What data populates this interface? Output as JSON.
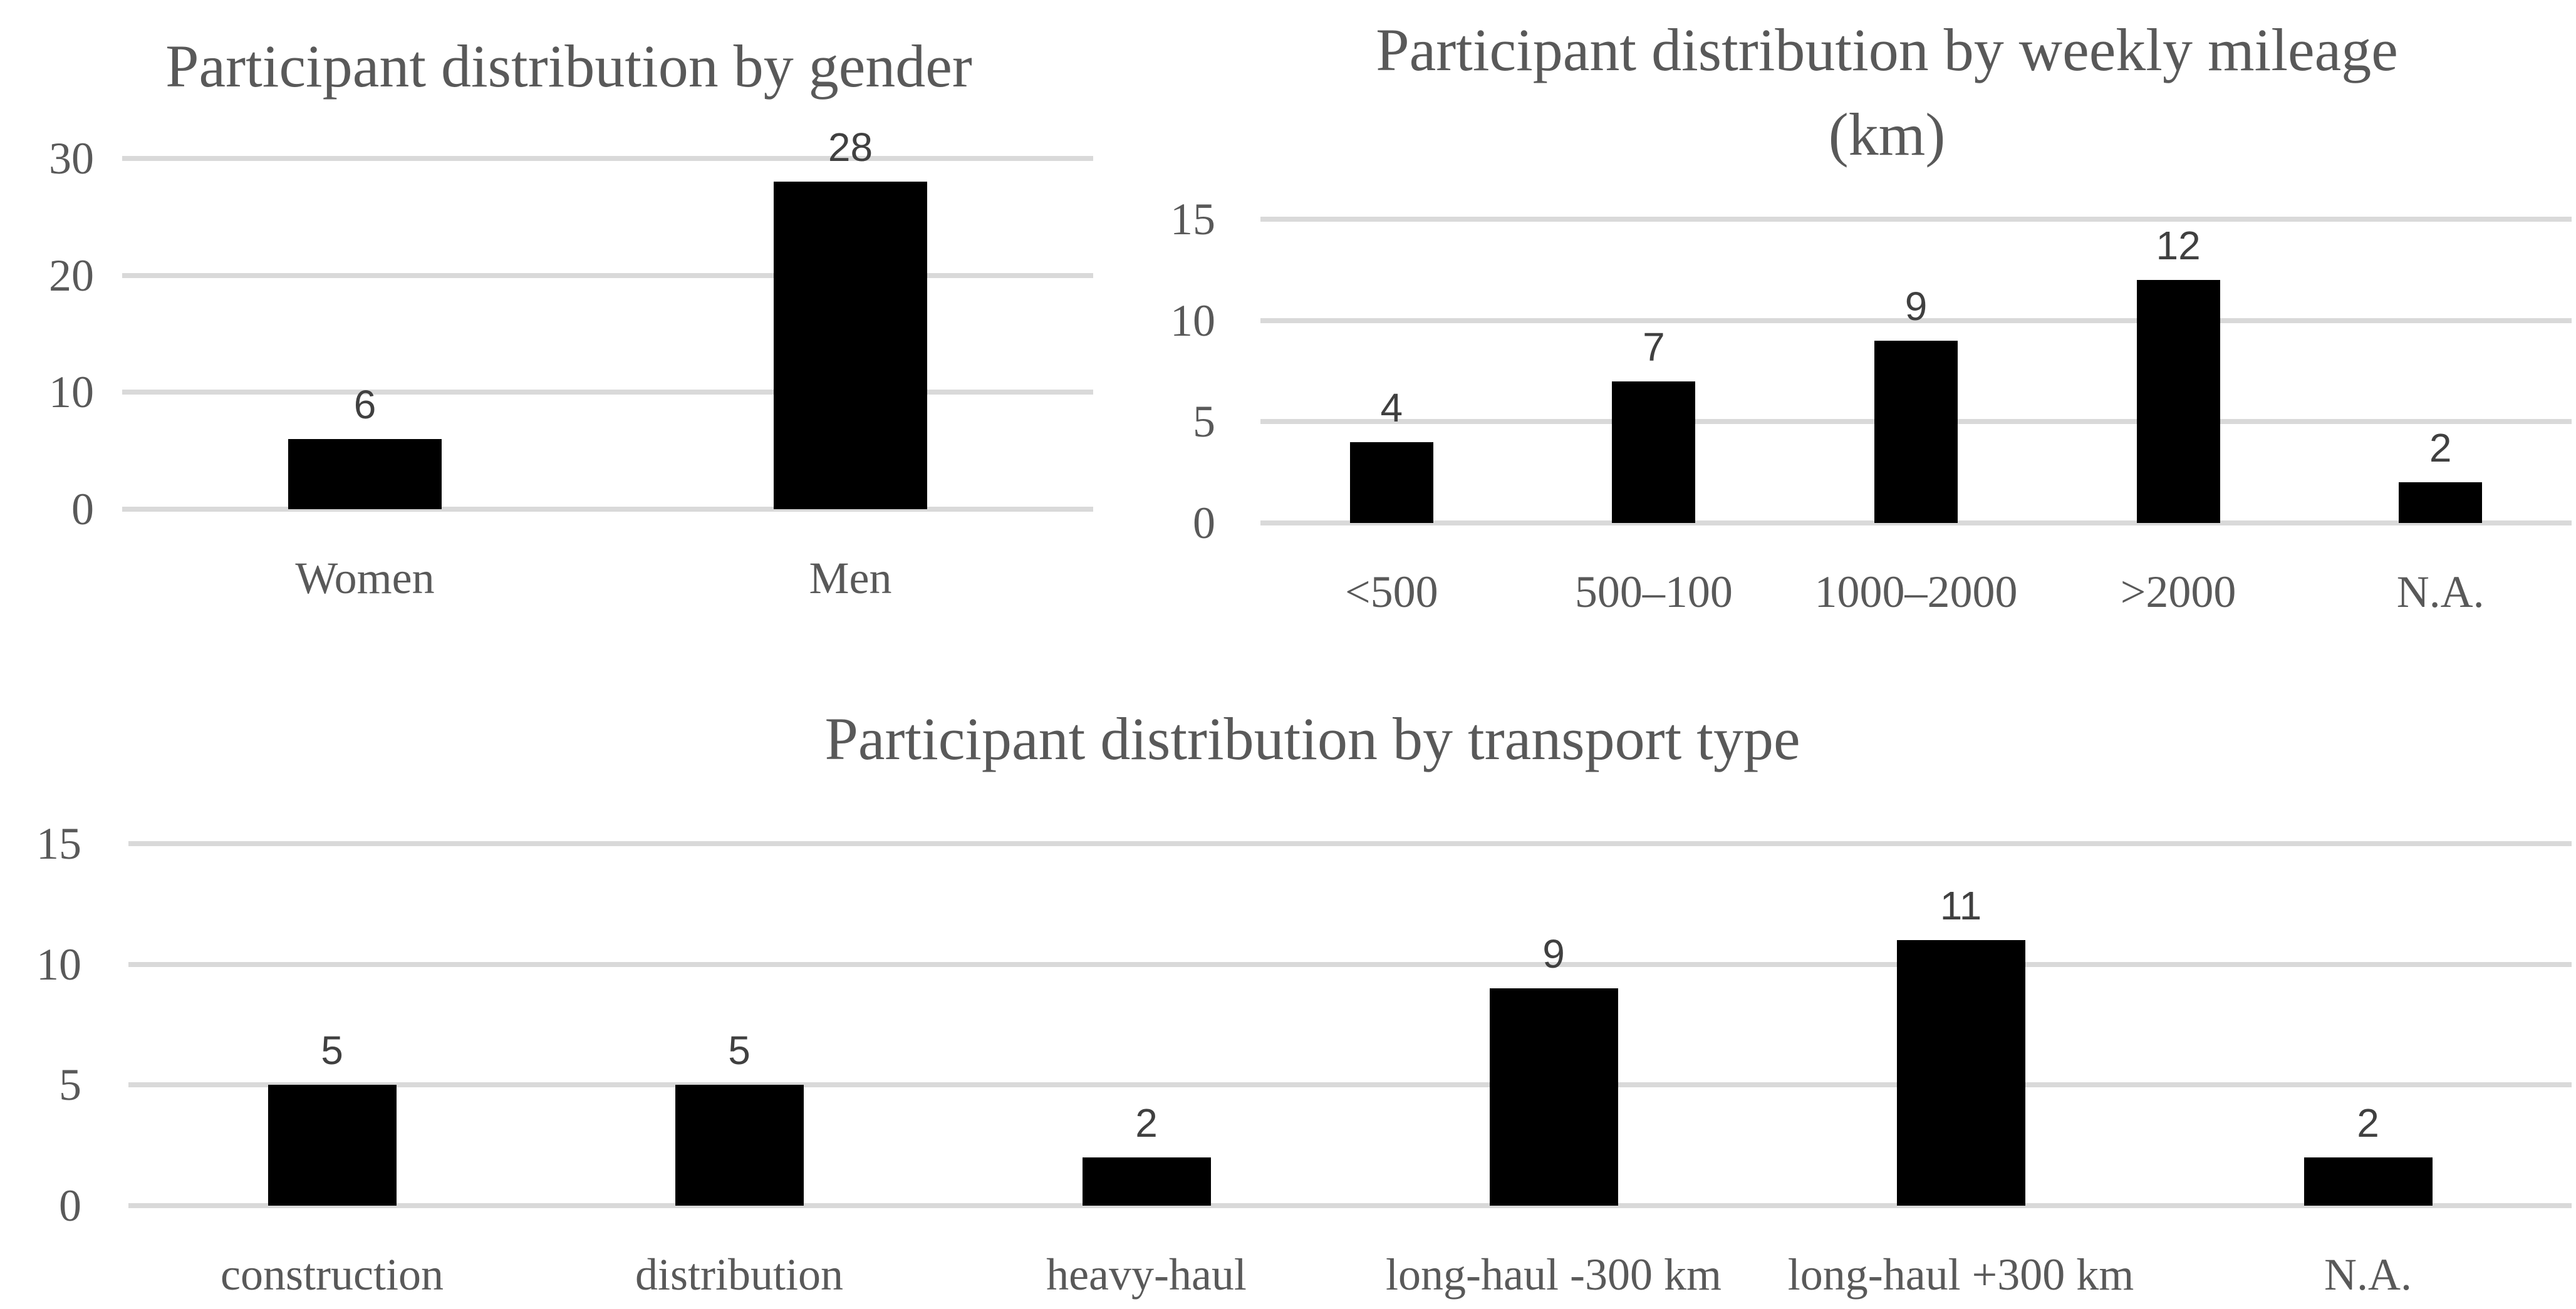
{
  "figure": {
    "background_color": "#ffffff",
    "title_color": "#595959",
    "axis_label_color": "#595959",
    "data_label_color": "#404040",
    "gridline_color": "#d9d9d9",
    "bar_color": "#000000"
  },
  "chart_data": [
    {
      "type": "bar",
      "title": "Participant distribution by gender",
      "title_lines": [
        "Participant distribution by gender"
      ],
      "categories": [
        "Women",
        "Men"
      ],
      "values": [
        6,
        28
      ],
      "data_labels": [
        "6",
        "28"
      ],
      "xlabel": "",
      "ylabel": "",
      "ylim": [
        0,
        30
      ],
      "yticks": [
        0,
        10,
        20,
        30
      ],
      "grid": "horizontal",
      "legend": "none"
    },
    {
      "type": "bar",
      "title": "Participant distribution by weekly mileage (km)",
      "title_lines": [
        "Participant distribution by weekly mileage",
        "(km)"
      ],
      "categories": [
        "<500",
        "500–100",
        "1000–2000",
        ">2000",
        "N.A."
      ],
      "values": [
        4,
        7,
        9,
        12,
        2
      ],
      "data_labels": [
        "4",
        "7",
        "9",
        "12",
        "2"
      ],
      "xlabel": "",
      "ylabel": "",
      "ylim": [
        0,
        15
      ],
      "yticks": [
        0,
        5,
        10,
        15
      ],
      "grid": "horizontal",
      "legend": "none"
    },
    {
      "type": "bar",
      "title": "Participant distribution by transport type",
      "title_lines": [
        "Participant distribution by transport type"
      ],
      "categories": [
        "construction",
        "distribution",
        "heavy-haul",
        "long-haul -300 km",
        "long-haul +300 km",
        "N.A."
      ],
      "values": [
        5,
        5,
        2,
        9,
        11,
        2
      ],
      "data_labels": [
        "5",
        "5",
        "2",
        "9",
        "11",
        "2"
      ],
      "xlabel": "",
      "ylabel": "",
      "ylim": [
        0,
        15
      ],
      "yticks": [
        0,
        5,
        10,
        15
      ],
      "grid": "horizontal",
      "legend": "none"
    }
  ]
}
